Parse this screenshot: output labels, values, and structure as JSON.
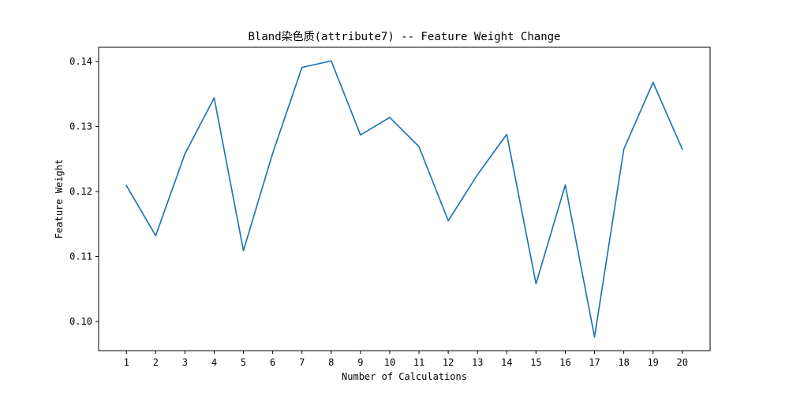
{
  "chart_data": {
    "type": "line",
    "title": "Bland染色质(attribute7) -- Feature Weight Change",
    "xlabel": "Number of Calculations",
    "ylabel": "Feature Weight",
    "x": [
      1,
      2,
      3,
      4,
      5,
      6,
      7,
      8,
      9,
      10,
      11,
      12,
      13,
      14,
      15,
      16,
      17,
      18,
      19,
      20
    ],
    "x_tick_labels": [
      "1",
      "2",
      "3",
      "4",
      "5",
      "6",
      "7",
      "8",
      "9",
      "10",
      "11",
      "12",
      "13",
      "14",
      "15",
      "16",
      "17",
      "18",
      "19",
      "20"
    ],
    "series": [
      {
        "values": [
          0.1209,
          0.1132,
          0.1258,
          0.1344,
          0.1109,
          0.1259,
          0.1391,
          0.1401,
          0.1287,
          0.1314,
          0.1269,
          0.1155,
          0.1226,
          0.1288,
          0.1058,
          0.121,
          0.0976,
          0.1265,
          0.1368,
          0.1265
        ],
        "color": "#1f77b4"
      }
    ],
    "xlim": [
      0.05,
      20.95
    ],
    "ylim": [
      0.0955,
      0.1422
    ],
    "y_ticks": [
      0.1,
      0.11,
      0.12,
      0.13,
      0.14
    ],
    "y_tick_labels": [
      "0.10",
      "0.11",
      "0.12",
      "0.13",
      "0.14"
    ],
    "grid": false,
    "legend": false
  }
}
